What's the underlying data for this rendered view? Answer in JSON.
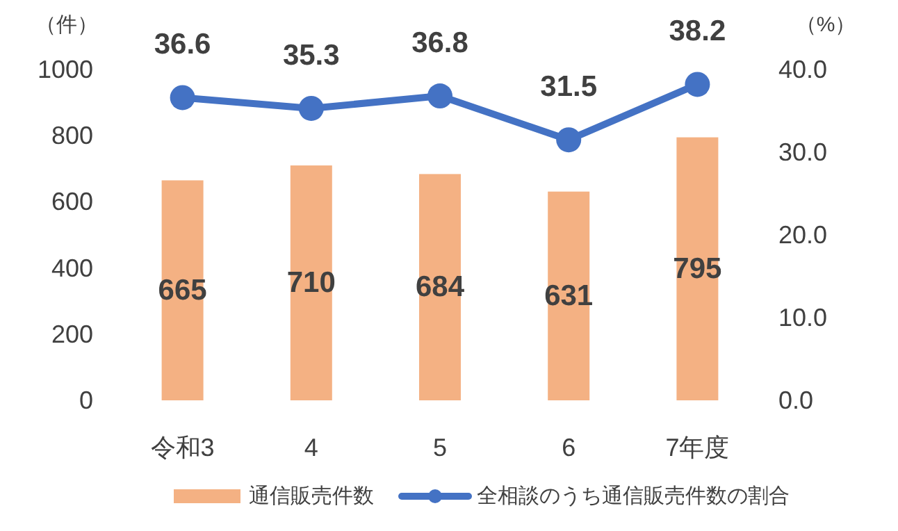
{
  "chart_data": {
    "type": "bar",
    "categories": [
      "令和3",
      "4",
      "5",
      "6",
      "7年度"
    ],
    "series": [
      {
        "name": "通信販売件数",
        "color": "#f4b183",
        "values": [
          665,
          710,
          684,
          631,
          795
        ]
      },
      {
        "name": "全相談のうち通信販売件数の割合",
        "type": "line",
        "axis": "y2",
        "color": "#4472c4",
        "marker": "circle",
        "values": [
          36.6,
          35.3,
          36.8,
          31.5,
          38.2
        ]
      }
    ],
    "ylabel": "（件）",
    "y2label": "（%）",
    "ylim": [
      0,
      1000
    ],
    "yticks": [
      0,
      200,
      400,
      600,
      800,
      1000
    ],
    "y2lim": [
      0,
      40
    ],
    "y2ticks": [
      {
        "value": 0,
        "label": "0.0"
      },
      {
        "value": 10,
        "label": "10.0"
      },
      {
        "value": 20,
        "label": "20.0"
      },
      {
        "value": 30,
        "label": "30.0"
      },
      {
        "value": 40,
        "label": "40.0"
      }
    ],
    "data_labels": true,
    "grid": false,
    "legend": "bottom"
  }
}
